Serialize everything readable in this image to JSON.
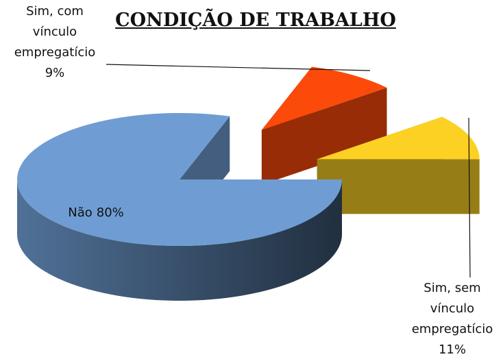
{
  "chart_data": {
    "type": "pie",
    "title": "CONDIÇÃO DE TRABALHO",
    "categories": [
      "Não",
      "Sim, com vínculo empregatício",
      "Sim, sem vínculo empregatício"
    ],
    "values": [
      80,
      9,
      11
    ],
    "value_labels": [
      "80%",
      "9%",
      "11%"
    ],
    "colors": [
      "#6f9dd3",
      "#fc4a0a",
      "#fcd124"
    ]
  }
}
